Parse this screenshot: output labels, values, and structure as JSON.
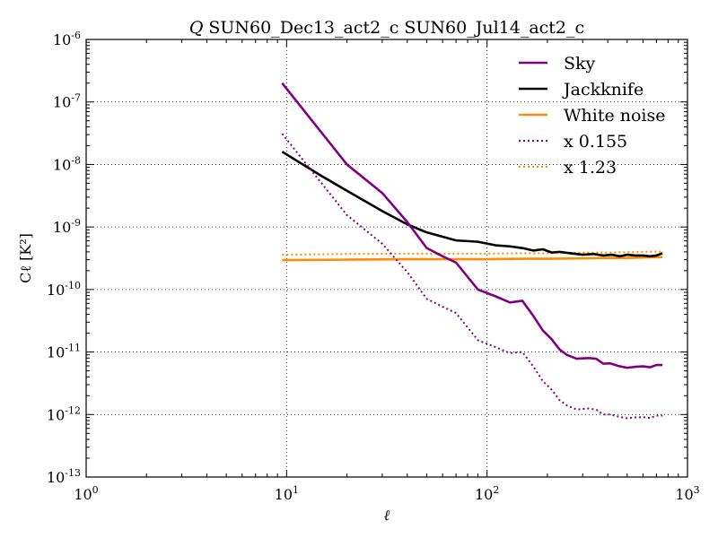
{
  "chart_data": {
    "type": "line",
    "title_prefix": "Q",
    "title": "SUN60_Dec13_act2_c SUN60_Jul14_act2_c",
    "xlabel": "ℓ",
    "ylabel": "Cℓ [K²]",
    "xscale": "log",
    "yscale": "log",
    "xlim": [
      1,
      1000
    ],
    "ylim": [
      1e-13,
      1e-06
    ],
    "grid": true,
    "legend_position": "top-right",
    "xticks": [
      {
        "value": 1,
        "base": "10",
        "exp": "0"
      },
      {
        "value": 10,
        "base": "10",
        "exp": "1"
      },
      {
        "value": 100,
        "base": "10",
        "exp": "2"
      },
      {
        "value": 1000,
        "base": "10",
        "exp": "3"
      }
    ],
    "yticks": [
      {
        "value": 1e-13,
        "base": "10",
        "exp": "-13"
      },
      {
        "value": 1e-12,
        "base": "10",
        "exp": "-12"
      },
      {
        "value": 1e-11,
        "base": "10",
        "exp": "-11"
      },
      {
        "value": 1e-10,
        "base": "10",
        "exp": "-10"
      },
      {
        "value": 1e-09,
        "base": "10",
        "exp": "-9"
      },
      {
        "value": 1e-08,
        "base": "10",
        "exp": "-8"
      },
      {
        "value": 1e-07,
        "base": "10",
        "exp": "-7"
      },
      {
        "value": 1e-06,
        "base": "10",
        "exp": "-6"
      }
    ],
    "series": [
      {
        "name": "Sky",
        "color": "#800080",
        "style": "solid",
        "x": [
          9.5,
          20,
          30,
          40,
          50,
          60,
          70,
          90,
          110,
          130,
          150,
          170,
          190,
          210,
          230,
          250,
          280,
          320,
          350,
          380,
          410,
          450,
          500,
          550,
          600,
          650,
          700,
          750
        ],
        "y": [
          2e-07,
          1e-08,
          3.5e-09,
          1.2e-09,
          4.6e-10,
          3.4e-10,
          2.7e-10,
          1e-10,
          7.8e-11,
          6.2e-11,
          6.6e-11,
          3.8e-11,
          2.2e-11,
          1.6e-11,
          1.1e-11,
          9e-12,
          7.8e-12,
          8e-12,
          7.8e-12,
          6.5e-12,
          6.6e-12,
          6e-12,
          5.6e-12,
          5.8e-12,
          5.9e-12,
          5.7e-12,
          6.2e-12,
          6.2e-12
        ]
      },
      {
        "name": "Jackknife",
        "color": "#000000",
        "style": "solid",
        "x": [
          9.5,
          15,
          20,
          30,
          40,
          50,
          70,
          90,
          110,
          130,
          150,
          170,
          190,
          210,
          230,
          260,
          300,
          340,
          380,
          420,
          460,
          500,
          550,
          600,
          650,
          700,
          750
        ],
        "y": [
          1.6e-08,
          6.5e-09,
          3.8e-09,
          1.8e-09,
          1.1e-09,
          8.2e-10,
          6.1e-10,
          5.8e-10,
          5.1e-10,
          4.9e-10,
          4.6e-10,
          4.2e-10,
          4.4e-10,
          3.9e-10,
          4e-10,
          3.8e-10,
          3.6e-10,
          3.7e-10,
          3.5e-10,
          3.6e-10,
          3.4e-10,
          3.6e-10,
          3.5e-10,
          3.5e-10,
          3.4e-10,
          3.5e-10,
          3.8e-10
        ]
      },
      {
        "name": "White noise",
        "color": "#ff8c00",
        "style": "solid",
        "x": [
          9.5,
          20,
          40,
          70,
          100,
          150,
          200,
          300,
          400,
          500,
          600,
          750
        ],
        "y": [
          2.95e-10,
          3e-10,
          3.05e-10,
          3.05e-10,
          3.05e-10,
          3.1e-10,
          3.1e-10,
          3.15e-10,
          3.2e-10,
          3.2e-10,
          3.25e-10,
          3.3e-10
        ]
      },
      {
        "name": "x 0.155",
        "color": "#800080",
        "style": "dotted",
        "x": [
          9.5,
          20,
          30,
          40,
          50,
          60,
          70,
          90,
          110,
          130,
          150,
          170,
          190,
          210,
          230,
          250,
          280,
          320,
          350,
          380,
          410,
          450,
          500,
          550,
          600,
          650,
          700,
          750
        ],
        "y": [
          3.1e-08,
          1.55e-09,
          5.4e-10,
          1.9e-10,
          7.1e-11,
          5.3e-11,
          4.2e-11,
          1.55e-11,
          1.2e-11,
          9.6e-12,
          1e-11,
          5.9e-12,
          3.4e-12,
          2.5e-12,
          1.7e-12,
          1.4e-12,
          1.2e-12,
          1.25e-12,
          1.2e-12,
          1e-12,
          1e-12,
          9.3e-13,
          8.7e-13,
          9e-13,
          9.1e-13,
          8.8e-13,
          9.6e-13,
          9.6e-13
        ]
      },
      {
        "name": "x 1.23",
        "color": "#ff8c00",
        "style": "dotted",
        "x": [
          9.5,
          20,
          40,
          70,
          100,
          150,
          200,
          300,
          400,
          500,
          600,
          750
        ],
        "y": [
          3.6e-10,
          3.7e-10,
          3.75e-10,
          3.75e-10,
          3.75e-10,
          3.8e-10,
          3.8e-10,
          3.9e-10,
          3.9e-10,
          3.95e-10,
          4e-10,
          4.05e-10
        ]
      }
    ]
  }
}
